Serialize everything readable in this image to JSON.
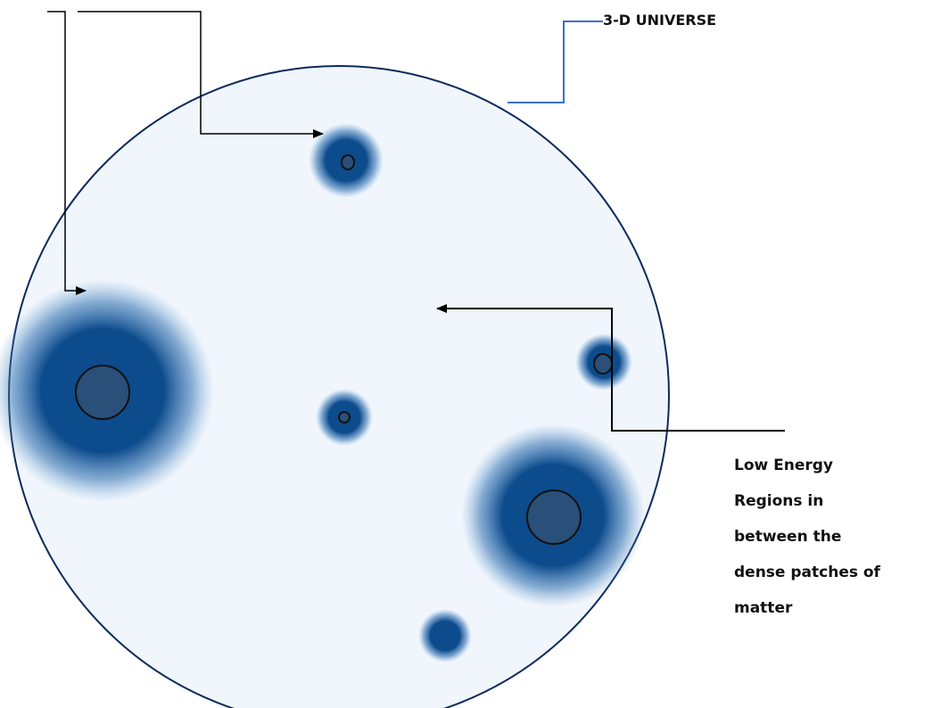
{
  "labels": {
    "universe": "3-D UNIVERSE",
    "low_energy_lines": [
      "Low Energy",
      "Regions in",
      "between the",
      "dense patches of",
      "matter"
    ]
  },
  "colors": {
    "universe_fill": "#f0f6fc",
    "universe_border": "#0d2a5c",
    "dense_matter": "#0c4b8c",
    "core_fill": "#2a4f78",
    "core_border": "#111111",
    "connector_blue": "#3a6fd0",
    "arrow": "#000000"
  }
}
